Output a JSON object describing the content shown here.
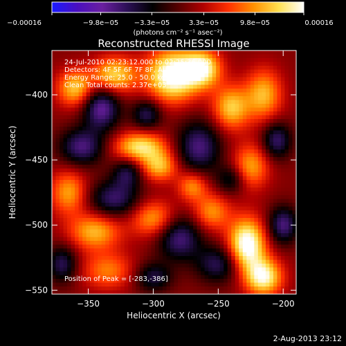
{
  "chart_data": {
    "type": "heatmap",
    "title": "Reconstructed RHESSI Image",
    "xlabel": "Heliocentric X (arcsec)",
    "ylabel": "Heliocentric Y (arcsec)",
    "xlim": [
      -378,
      -190
    ],
    "ylim": [
      -553,
      -366
    ],
    "xticks": [
      -350,
      -300,
      -250,
      -200
    ],
    "xtick_labels": [
      "−350",
      "−300",
      "−250",
      "−200"
    ],
    "yticks": [
      -400,
      -450,
      -500,
      -550
    ],
    "ytick_labels": [
      "−400",
      "−450",
      "−500",
      "−550"
    ],
    "colorbar": {
      "colors": [
        "#1a1aff",
        "#4a0fc0",
        "#6a1fa0",
        "#2b0f55",
        "#000000",
        "#550000",
        "#b00000",
        "#ff3000",
        "#ff9000",
        "#ffe050",
        "#ffffff"
      ],
      "min": -0.00016,
      "max": 0.00016,
      "tick_values": [
        -0.00016,
        -9.8e-05,
        -3.3e-05,
        3.3e-05,
        9.8e-05,
        0.00016
      ],
      "tick_labels": [
        "−0.00016",
        "−9.8e−05",
        "−3.3e−05",
        "3.3e−05",
        "9.8e−05",
        "0.00016"
      ],
      "unit_label": "(photons cm⁻² s⁻¹ asec⁻²)"
    },
    "blobs": [
      {
        "x": -285,
        "y": -385,
        "sx": 14,
        "sy": 14,
        "v": 1.0
      },
      {
        "x": -262,
        "y": -380,
        "sx": 10,
        "sy": 10,
        "v": 0.8
      },
      {
        "x": -330,
        "y": -385,
        "sx": 12,
        "sy": 10,
        "v": 0.7
      },
      {
        "x": -360,
        "y": -395,
        "sx": 10,
        "sy": 10,
        "v": 0.65
      },
      {
        "x": -340,
        "y": -410,
        "sx": 10,
        "sy": 12,
        "v": -0.7
      },
      {
        "x": -305,
        "y": -415,
        "sx": 8,
        "sy": 8,
        "v": -0.5
      },
      {
        "x": -310,
        "y": -440,
        "sx": 14,
        "sy": 8,
        "v": 0.75
      },
      {
        "x": -295,
        "y": -455,
        "sx": 10,
        "sy": 8,
        "v": 0.6
      },
      {
        "x": -355,
        "y": -440,
        "sx": 12,
        "sy": 10,
        "v": -0.6
      },
      {
        "x": -265,
        "y": -440,
        "sx": 12,
        "sy": 14,
        "v": -0.6
      },
      {
        "x": -240,
        "y": -410,
        "sx": 10,
        "sy": 12,
        "v": 0.65
      },
      {
        "x": -215,
        "y": -400,
        "sx": 10,
        "sy": 14,
        "v": 0.6
      },
      {
        "x": -225,
        "y": -455,
        "sx": 10,
        "sy": 12,
        "v": 0.55
      },
      {
        "x": -205,
        "y": -435,
        "sx": 8,
        "sy": 10,
        "v": -0.55
      },
      {
        "x": -365,
        "y": -475,
        "sx": 10,
        "sy": 12,
        "v": 0.55
      },
      {
        "x": -330,
        "y": -480,
        "sx": 14,
        "sy": 10,
        "v": -0.55
      },
      {
        "x": -345,
        "y": -505,
        "sx": 14,
        "sy": 10,
        "v": 0.6
      },
      {
        "x": -300,
        "y": -495,
        "sx": 12,
        "sy": 10,
        "v": 0.55
      },
      {
        "x": -280,
        "y": -510,
        "sx": 12,
        "sy": 12,
        "v": -0.6
      },
      {
        "x": -255,
        "y": -490,
        "sx": 10,
        "sy": 10,
        "v": 0.5
      },
      {
        "x": -228,
        "y": -515,
        "sx": 10,
        "sy": 14,
        "v": 1.0
      },
      {
        "x": -215,
        "y": -540,
        "sx": 10,
        "sy": 10,
        "v": 0.85
      },
      {
        "x": -200,
        "y": -500,
        "sx": 8,
        "sy": 10,
        "v": -0.6
      },
      {
        "x": -250,
        "y": -530,
        "sx": 12,
        "sy": 10,
        "v": -0.5
      },
      {
        "x": -335,
        "y": -535,
        "sx": 14,
        "sy": 10,
        "v": 0.45
      },
      {
        "x": -300,
        "y": -540,
        "sx": 10,
        "sy": 8,
        "v": -0.45
      },
      {
        "x": -270,
        "y": -470,
        "sx": 8,
        "sy": 8,
        "v": 0.5
      },
      {
        "x": -370,
        "y": -530,
        "sx": 8,
        "sy": 10,
        "v": -0.5
      },
      {
        "x": -240,
        "y": -465,
        "sx": 8,
        "sy": 8,
        "v": -0.4
      },
      {
        "x": -320,
        "y": -460,
        "sx": 8,
        "sy": 8,
        "v": -0.45
      }
    ]
  },
  "info": {
    "time_range": "24-Jul-2010 02:23:12.000 to 02:25:36.000",
    "detectors": "Detectors: 4F 5F 6F 7F 8F, Att 0",
    "energy": "Energy Range: 25.0 - 50.0 keV",
    "clean": "Clean     Total counts: 2.37e+03",
    "peak": "Position of Peak = [-283,-386]"
  },
  "footer": {
    "date": "2-Aug-2013 23:12"
  }
}
